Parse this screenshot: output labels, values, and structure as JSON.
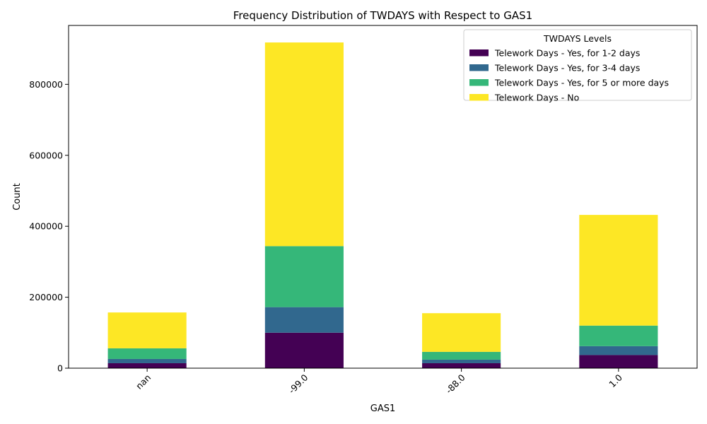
{
  "chart_data": {
    "type": "bar",
    "stacked": true,
    "title": "Frequency Distribution of TWDAYS with Respect to GAS1",
    "xlabel": "GAS1",
    "ylabel": "Count",
    "categories": [
      "nan",
      "-99.0",
      "-88.0",
      "1.0"
    ],
    "ylim": [
      0,
      966000
    ],
    "yticks": [
      0,
      200000,
      400000,
      600000,
      800000
    ],
    "ytick_labels": [
      "0",
      "200000",
      "400000",
      "600000",
      "800000"
    ],
    "grid": false,
    "legend": {
      "title": "TWDAYS Levels",
      "placement": "top-right"
    },
    "series": [
      {
        "name": "Telework Days - Yes, for 1-2 days",
        "color": "#440154",
        "values": [
          14000,
          100000,
          14000,
          37000
        ]
      },
      {
        "name": "Telework Days - Yes, for 3-4 days",
        "color": "#31688e",
        "values": [
          12000,
          72000,
          10000,
          25000
        ]
      },
      {
        "name": "Telework Days - Yes, for 5 or more days",
        "color": "#35b779",
        "values": [
          30000,
          172000,
          22000,
          58000
        ]
      },
      {
        "name": "Telework Days - No",
        "color": "#fde725",
        "values": [
          101000,
          574000,
          109000,
          312000
        ]
      }
    ]
  }
}
